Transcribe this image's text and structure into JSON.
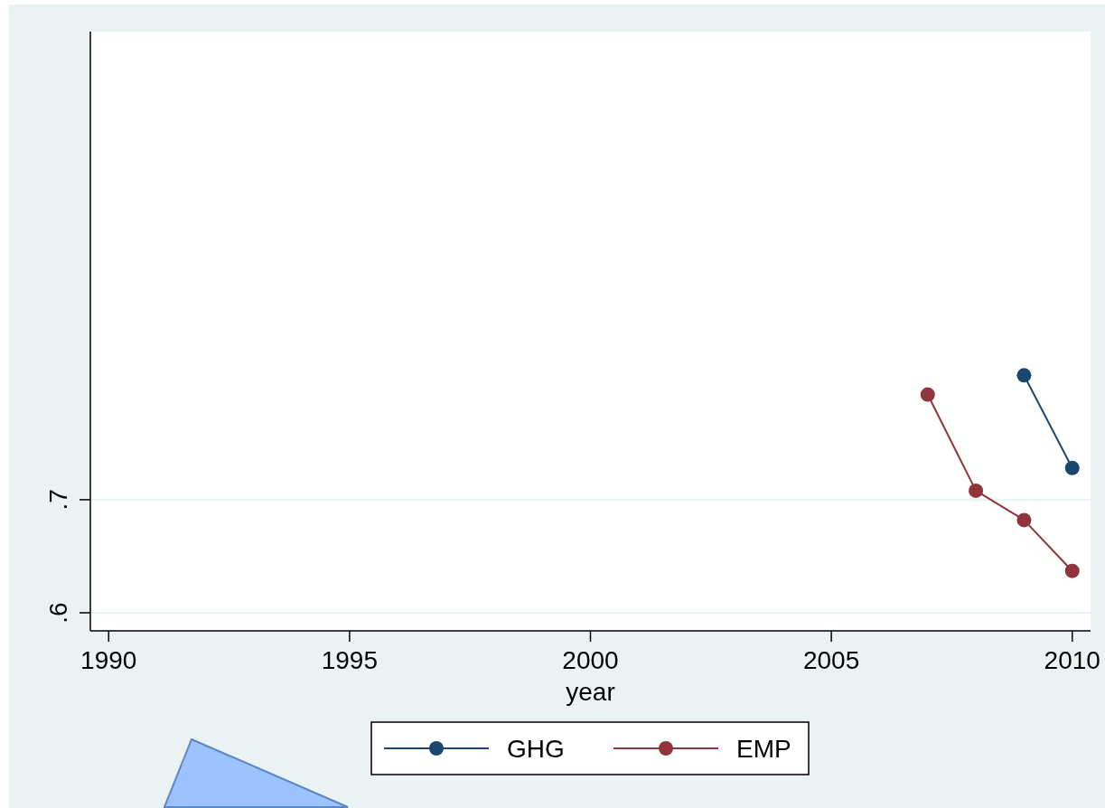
{
  "chart_data": {
    "type": "line",
    "xlabel": "year",
    "x": [
      2007,
      2008,
      2009,
      2010
    ],
    "series": [
      {
        "name": "GHG",
        "color": "#1a476f",
        "values": [
          null,
          null,
          0.81,
          0.728
        ]
      },
      {
        "name": "EMP",
        "color": "#90353b",
        "values": [
          0.793,
          0.708,
          0.682,
          0.637
        ]
      }
    ],
    "xlim": [
      1989.62,
      2010.38
    ],
    "xticks": [
      1990,
      1995,
      2000,
      2005,
      2010
    ],
    "ylim": [
      0.584,
      1.114
    ],
    "yticks": [
      {
        "value": 0.6,
        "label": ".6"
      },
      {
        "value": 0.7,
        "label": ".7"
      }
    ],
    "grid": "y",
    "legend": "bottom",
    "marker": "circle"
  }
}
